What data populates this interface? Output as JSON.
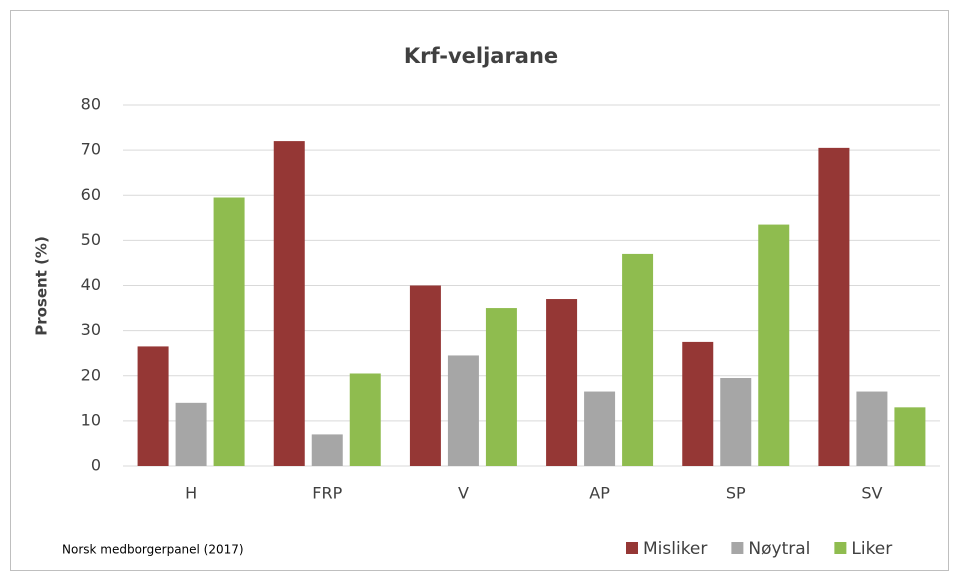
{
  "chart_data": {
    "type": "bar",
    "title": "Krf-veljarane",
    "y_label": "Prosent (%)",
    "source": "Norsk medborgerpanel (2017)",
    "categories": [
      "H",
      "FRP",
      "V",
      "AP",
      "SP",
      "SV"
    ],
    "series": [
      {
        "name": "Misliker",
        "color": "#953735",
        "values": [
          26.5,
          72,
          40,
          37,
          27.5,
          70.5
        ]
      },
      {
        "name": "Nøytral",
        "color": "#a6a6a6",
        "values": [
          14,
          7,
          24.5,
          16.5,
          19.5,
          16.5
        ]
      },
      {
        "name": "Liker",
        "color": "#8fbc4f",
        "values": [
          59.5,
          20.5,
          35,
          47,
          53.5,
          13
        ]
      }
    ],
    "ylim": [
      0,
      80
    ],
    "yticks": [
      0,
      10,
      20,
      30,
      40,
      50,
      60,
      70,
      80
    ],
    "grid": true,
    "legend": "bottom-right"
  }
}
